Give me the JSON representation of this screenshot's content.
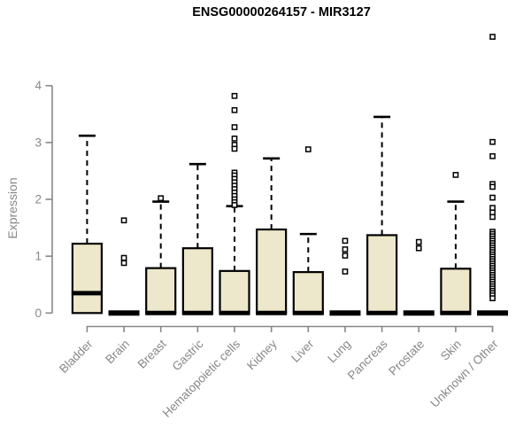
{
  "title": "ENSG00000264157 - MIR3127",
  "chart_data": {
    "type": "boxplot",
    "title": "ENSG00000264157 - MIR3127",
    "xlabel": "",
    "ylabel": "Expression",
    "ylim": [
      0,
      4
    ],
    "yticks": [
      0,
      1,
      2,
      3,
      4
    ],
    "grid": false,
    "legend": "none",
    "colors": {
      "box_fill": "#EDE7CB",
      "box_stroke": "#000000",
      "axis": "#878787",
      "tick_label": "#878787",
      "title": "#000000"
    },
    "categories": [
      "Bladder",
      "Brain",
      "Breast",
      "Gastric",
      "Hematopoietic cells",
      "Kidney",
      "Liver",
      "Lung",
      "Pancreas",
      "Prostate",
      "Skin",
      "Unknown / Other"
    ],
    "series": [
      {
        "category": "Bladder",
        "q1": 0,
        "median": 0.35,
        "q3": 1.22,
        "whisker_low": 0,
        "whisker_high": 3.12,
        "outliers": []
      },
      {
        "category": "Brain",
        "q1": 0,
        "median": 0,
        "q3": 0,
        "whisker_low": 0,
        "whisker_high": 0,
        "outliers": [
          1.63,
          0.97,
          0.88
        ]
      },
      {
        "category": "Breast",
        "q1": 0,
        "median": 0,
        "q3": 0.79,
        "whisker_low": 0,
        "whisker_high": 1.96,
        "outliers": [
          2.02
        ]
      },
      {
        "category": "Gastric",
        "q1": 0,
        "median": 0,
        "q3": 1.14,
        "whisker_low": 0,
        "whisker_high": 2.62,
        "outliers": []
      },
      {
        "category": "Hematopoietic cells",
        "q1": 0,
        "median": 0,
        "q3": 0.74,
        "whisker_low": 0,
        "whisker_high": 1.88,
        "outliers": [
          3.82,
          3.57,
          3.27,
          3.07,
          2.96,
          2.89,
          2.47,
          2.42,
          2.36,
          2.3,
          2.24,
          2.18,
          2.12,
          2.06,
          2.0,
          1.95,
          1.9
        ]
      },
      {
        "category": "Kidney",
        "q1": 0,
        "median": 0,
        "q3": 1.47,
        "whisker_low": 0,
        "whisker_high": 2.72,
        "outliers": []
      },
      {
        "category": "Liver",
        "q1": 0,
        "median": 0,
        "q3": 0.72,
        "whisker_low": 0,
        "whisker_high": 1.39,
        "outliers": [
          2.88
        ]
      },
      {
        "category": "Lung",
        "q1": 0,
        "median": 0,
        "q3": 0,
        "whisker_low": 0,
        "whisker_high": 0,
        "outliers": [
          1.27,
          1.12,
          1.01,
          0.73
        ]
      },
      {
        "category": "Pancreas",
        "q1": 0,
        "median": 0,
        "q3": 1.37,
        "whisker_low": 0,
        "whisker_high": 3.45,
        "outliers": []
      },
      {
        "category": "Prostate",
        "q1": 0,
        "median": 0,
        "q3": 0,
        "whisker_low": 0,
        "whisker_high": 0,
        "outliers": [
          1.25,
          1.14
        ]
      },
      {
        "category": "Skin",
        "q1": 0,
        "median": 0,
        "q3": 0.78,
        "whisker_low": 0,
        "whisker_high": 1.96,
        "outliers": [
          2.43
        ]
      },
      {
        "category": "Unknown / Other",
        "q1": 0,
        "median": 0,
        "q3": 0,
        "whisker_low": 0,
        "whisker_high": 0,
        "outliers": [
          4.86,
          3.01,
          2.76,
          2.27,
          2.22,
          2.03,
          1.85,
          1.77,
          1.69,
          1.43,
          1.39,
          1.35,
          1.31,
          1.27,
          1.23,
          1.19,
          1.15,
          1.11,
          1.07,
          1.03,
          0.99,
          0.95,
          0.91,
          0.87,
          0.83,
          0.79,
          0.75,
          0.71,
          0.67,
          0.63,
          0.59,
          0.55,
          0.51,
          0.47,
          0.43,
          0.39,
          0.35,
          0.31,
          0.26
        ]
      }
    ]
  }
}
